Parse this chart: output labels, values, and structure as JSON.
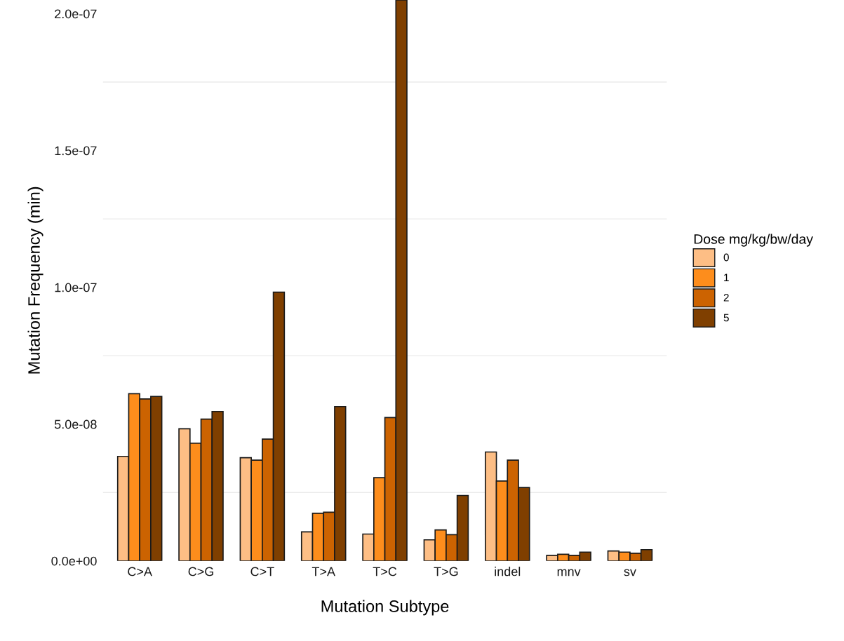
{
  "chart_data": {
    "type": "bar",
    "xlabel": "Mutation Subtype",
    "ylabel": "Mutation Frequency (min)",
    "legend_title": "Dose mg/kg/bw/day",
    "categories": [
      "C>A",
      "C>G",
      "C>T",
      "T>A",
      "T>C",
      "T>G",
      "indel",
      "mnv",
      "sv"
    ],
    "series": [
      {
        "name": "0",
        "color": "#fdbe85",
        "values": [
          3.82e-08,
          4.83e-08,
          3.77e-08,
          1.06e-08,
          9.8e-09,
          7.7e-09,
          3.98e-08,
          2e-09,
          3.6e-09
        ]
      },
      {
        "name": "1",
        "color": "#fd8d1c",
        "values": [
          6.11e-08,
          4.3e-08,
          3.68e-08,
          1.74e-08,
          3.04e-08,
          1.13e-08,
          2.92e-08,
          2.4e-09,
          3.2e-09
        ]
      },
      {
        "name": "2",
        "color": "#cc6301",
        "values": [
          5.92e-08,
          5.18e-08,
          4.45e-08,
          1.78e-08,
          5.24e-08,
          9.6e-09,
          3.68e-08,
          2e-09,
          2.8e-09
        ]
      },
      {
        "name": "5",
        "color": "#7f3f00",
        "values": [
          6.01e-08,
          5.46e-08,
          9.82e-08,
          5.64e-08,
          2.05e-07,
          2.39e-08,
          2.68e-08,
          3.2e-09,
          4.1e-09
        ]
      }
    ],
    "ylim": [
      0,
      2.05e-07
    ],
    "yticks": [
      {
        "value": 0,
        "label": "0.0e+00"
      },
      {
        "value": 2.5e-08,
        "label": null
      },
      {
        "value": 5e-08,
        "label": "5.0e-08"
      },
      {
        "value": 7.5e-08,
        "label": null
      },
      {
        "value": 1e-07,
        "label": "1.0e-07"
      },
      {
        "value": 1.25e-07,
        "label": null
      },
      {
        "value": 1.5e-07,
        "label": "1.5e-07"
      },
      {
        "value": 1.75e-07,
        "label": null
      },
      {
        "value": 2e-07,
        "label": "2.0e-07"
      }
    ],
    "grid": "y",
    "legend": "right"
  }
}
